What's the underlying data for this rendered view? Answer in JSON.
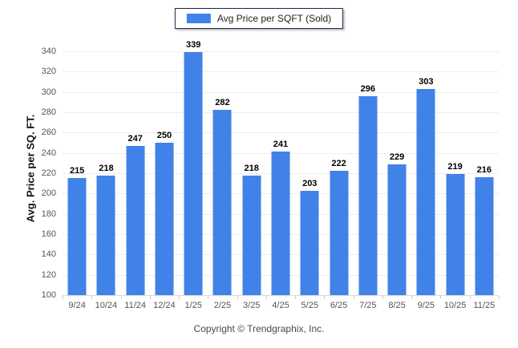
{
  "legend": {
    "label": "Avg Price per SQFT (Sold)"
  },
  "footer": {
    "text": "Copyright © Trendgraphix, Inc."
  },
  "chart_data": {
    "type": "bar",
    "title": "",
    "series_name": "Avg Price per SQFT (Sold)",
    "categories": [
      "9/24",
      "10/24",
      "11/24",
      "12/24",
      "1/25",
      "2/25",
      "3/25",
      "4/25",
      "5/25",
      "6/25",
      "7/25",
      "8/25",
      "9/25",
      "10/25",
      "11/25"
    ],
    "values": [
      215,
      218,
      247,
      250,
      339,
      282,
      218,
      241,
      203,
      222,
      296,
      229,
      303,
      219,
      216
    ],
    "xlabel": "",
    "ylabel": "Avg. Price per SQ. FT.",
    "ylim": [
      100,
      340
    ],
    "ytick_step": 20,
    "grid": "horizontal",
    "legend_position": "top-center",
    "value_labels": true
  },
  "colors": {
    "bar": "#4182E8",
    "gridline": "#ededed",
    "axis_line": "#d8d8d8",
    "tick_mark": "#cccccc",
    "tick_label": "#555555",
    "value_label": "#000000",
    "legend_border": "#22224a"
  }
}
